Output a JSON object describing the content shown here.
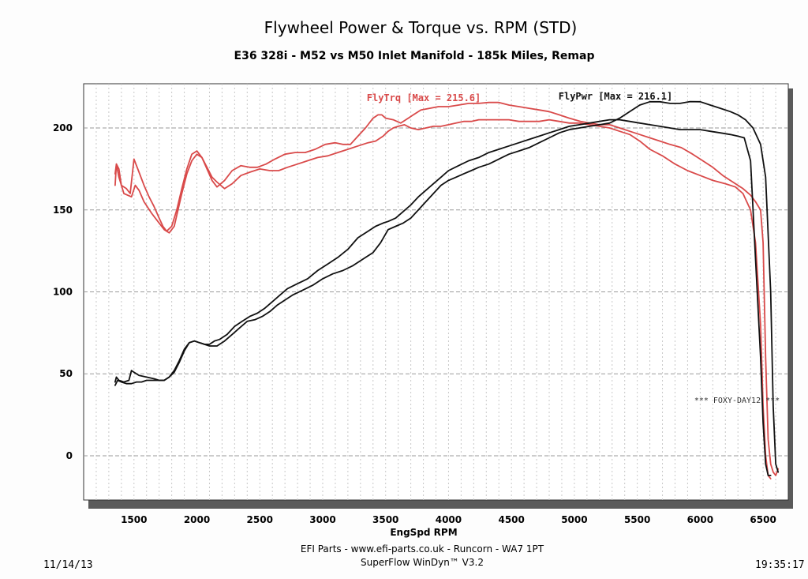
{
  "chart_data": {
    "type": "line",
    "title": "Flywheel Power & Torque vs. RPM (STD)",
    "subtitle": "E36 328i - M52 vs M50 Inlet Manifold - 185k Miles, Remap",
    "xlabel": "EngSpd RPM",
    "ylabel": "",
    "xlim": [
      1100,
      6700
    ],
    "ylim": [
      -27,
      227
    ],
    "x_ticks": [
      1500,
      2000,
      2500,
      3000,
      3500,
      4000,
      4500,
      5000,
      5500,
      6000,
      6500
    ],
    "y_ticks": [
      0,
      50,
      100,
      150,
      200
    ],
    "grid": true,
    "legend": [
      {
        "label": "FlyTrq [Max = 215.6]",
        "color": "#d94a4a"
      },
      {
        "label": "FlyPwr [Max = 216.1]",
        "color": "#111111"
      }
    ],
    "annotation": "*** FOXY-DAY12 ***",
    "series": [
      {
        "name": "FlyTrq run A",
        "color": "#d94a4a",
        "x": [
          1350,
          1360,
          1380,
          1420,
          1480,
          1510,
          1540,
          1580,
          1640,
          1700,
          1740,
          1780,
          1820,
          1850,
          1880,
          1920,
          1960,
          2000,
          2040,
          2080,
          2120,
          2160,
          2220,
          2280,
          2350,
          2420,
          2480,
          2550,
          2620,
          2700,
          2780,
          2860,
          2940,
          3020,
          3100,
          3160,
          3220,
          3280,
          3340,
          3400,
          3440,
          3470,
          3500,
          3560,
          3620,
          3680,
          3720,
          3780,
          3850,
          3920,
          4000,
          4080,
          4160,
          4240,
          4320,
          4400,
          4480,
          4560,
          4640,
          4720,
          4800,
          4880,
          4960,
          5050,
          5120,
          5200,
          5280,
          5360,
          5440,
          5520,
          5600,
          5680,
          5760,
          5850,
          5940,
          6020,
          6100,
          6180,
          6260,
          6340,
          6400,
          6440,
          6480,
          6500,
          6520,
          6540,
          6560,
          6580,
          6600,
          6620
        ],
        "y": [
          165,
          178,
          170,
          160,
          158,
          165,
          162,
          155,
          148,
          142,
          138,
          136,
          140,
          150,
          160,
          172,
          180,
          184,
          182,
          175,
          168,
          164,
          168,
          174,
          177,
          176,
          176,
          178,
          181,
          184,
          185,
          185,
          187,
          190,
          191,
          190,
          190,
          195,
          200,
          206,
          208,
          208,
          206,
          205,
          203,
          206,
          208,
          211,
          212,
          213,
          213,
          214,
          215,
          215,
          215.6,
          215.6,
          214,
          213,
          212,
          211,
          210,
          208,
          206,
          204,
          203,
          202,
          202,
          200,
          198,
          196,
          194,
          192,
          190,
          188,
          184,
          180,
          176,
          171,
          167,
          163,
          159,
          155,
          150,
          130,
          60,
          10,
          -5,
          -10,
          -12,
          -8
        ]
      },
      {
        "name": "FlyTrq run B",
        "color": "#d94a4a",
        "x": [
          1350,
          1360,
          1380,
          1400,
          1440,
          1470,
          1480,
          1500,
          1540,
          1580,
          1620,
          1660,
          1700,
          1730,
          1760,
          1800,
          1840,
          1880,
          1920,
          1960,
          2000,
          2040,
          2080,
          2120,
          2160,
          2220,
          2280,
          2350,
          2420,
          2500,
          2580,
          2650,
          2720,
          2800,
          2880,
          2960,
          3040,
          3120,
          3200,
          3280,
          3360,
          3420,
          3480,
          3520,
          3560,
          3600,
          3650,
          3700,
          3760,
          3820,
          3880,
          3940,
          4000,
          4060,
          4120,
          4180,
          4240,
          4320,
          4400,
          4480,
          4560,
          4640,
          4720,
          4800,
          4880,
          4960,
          5040,
          5120,
          5200,
          5280,
          5360,
          5440,
          5520,
          5600,
          5700,
          5800,
          5900,
          6000,
          6100,
          6200,
          6280,
          6340,
          6400,
          6440,
          6480,
          6500,
          6520,
          6540,
          6560
        ],
        "y": [
          172,
          178,
          175,
          165,
          163,
          160,
          167,
          181,
          173,
          165,
          158,
          152,
          145,
          140,
          137,
          140,
          150,
          163,
          175,
          184,
          186,
          182,
          176,
          170,
          167,
          163,
          166,
          171,
          173,
          175,
          174,
          174,
          176,
          178,
          180,
          182,
          183,
          185,
          187,
          189,
          191,
          192,
          195,
          198,
          200,
          201,
          202,
          200,
          199,
          200,
          201,
          201,
          202,
          203,
          204,
          204,
          205,
          205,
          205,
          205,
          204,
          204,
          204,
          205,
          204,
          203,
          203,
          202,
          201,
          200,
          198,
          196,
          192,
          187,
          183,
          178,
          174,
          171,
          168,
          166,
          164,
          160,
          150,
          130,
          80,
          30,
          0,
          -12,
          -14
        ]
      },
      {
        "name": "FlyPwr run A",
        "color": "#111111",
        "x": [
          1350,
          1360,
          1380,
          1420,
          1460,
          1480,
          1500,
          1540,
          1600,
          1660,
          1700,
          1740,
          1780,
          1820,
          1860,
          1900,
          1940,
          1980,
          2020,
          2060,
          2100,
          2140,
          2180,
          2240,
          2300,
          2360,
          2420,
          2480,
          2540,
          2600,
          2660,
          2720,
          2800,
          2880,
          2960,
          3040,
          3120,
          3200,
          3280,
          3360,
          3420,
          3480,
          3520,
          3580,
          3640,
          3700,
          3760,
          3820,
          3880,
          3940,
          4000,
          4080,
          4160,
          4240,
          4320,
          4400,
          4480,
          4560,
          4640,
          4720,
          4800,
          4880,
          4960,
          5040,
          5120,
          5200,
          5280,
          5360,
          5440,
          5520,
          5600,
          5680,
          5760,
          5840,
          5920,
          6000,
          6080,
          6160,
          6240,
          6300,
          6350,
          6400,
          6440,
          6480,
          6500,
          6520,
          6540,
          6560
        ],
        "y": [
          45,
          48,
          46,
          45,
          46,
          52,
          51,
          49,
          48,
          47,
          46,
          46,
          48,
          51,
          57,
          64,
          69,
          70,
          69,
          68,
          68,
          70,
          71,
          74,
          79,
          82,
          85,
          87,
          90,
          94,
          98,
          102,
          105,
          108,
          113,
          117,
          121,
          126,
          133,
          137,
          140,
          142,
          143,
          145,
          149,
          153,
          158,
          162,
          166,
          170,
          174,
          177,
          180,
          182,
          185,
          187,
          189,
          191,
          193,
          195,
          197,
          199,
          201,
          202,
          203,
          204,
          205,
          205,
          204,
          203,
          202,
          201,
          200,
          199,
          199,
          199,
          198,
          197,
          196,
          195,
          194,
          180,
          120,
          60,
          20,
          -5,
          -12,
          -12
        ]
      },
      {
        "name": "FlyPwr run B",
        "color": "#111111",
        "x": [
          1350,
          1370,
          1400,
          1440,
          1480,
          1520,
          1560,
          1600,
          1660,
          1700,
          1740,
          1780,
          1820,
          1860,
          1900,
          1940,
          1980,
          2020,
          2060,
          2100,
          2160,
          2220,
          2280,
          2340,
          2400,
          2460,
          2520,
          2580,
          2640,
          2700,
          2760,
          2840,
          2920,
          3000,
          3080,
          3160,
          3240,
          3320,
          3400,
          3460,
          3520,
          3580,
          3640,
          3700,
          3760,
          3820,
          3880,
          3940,
          4000,
          4060,
          4120,
          4180,
          4240,
          4320,
          4400,
          4480,
          4560,
          4640,
          4720,
          4800,
          4880,
          4960,
          5040,
          5120,
          5200,
          5280,
          5360,
          5440,
          5520,
          5600,
          5680,
          5760,
          5840,
          5920,
          6000,
          6080,
          6160,
          6240,
          6300,
          6360,
          6420,
          6480,
          6520,
          6560,
          6580,
          6600,
          6620
        ],
        "y": [
          43,
          46,
          45,
          44,
          44,
          45,
          45,
          46,
          46,
          46,
          46,
          48,
          52,
          58,
          65,
          69,
          70,
          69,
          68,
          67,
          67,
          70,
          74,
          78,
          82,
          83,
          85,
          88,
          92,
          95,
          98,
          101,
          104,
          108,
          111,
          113,
          116,
          120,
          124,
          130,
          138,
          140,
          142,
          145,
          150,
          155,
          160,
          165,
          168,
          170,
          172,
          174,
          176,
          178,
          181,
          184,
          186,
          188,
          191,
          194,
          197,
          199,
          200,
          201,
          202,
          203,
          206,
          210,
          214,
          216,
          216,
          215,
          215,
          216.1,
          216,
          214,
          212,
          210,
          208,
          205,
          200,
          190,
          170,
          100,
          30,
          -5,
          -10
        ]
      }
    ]
  },
  "footer": {
    "line1": "EFI Parts - www.efi-parts.co.uk - Runcorn - WA7 1PT",
    "line2": "SuperFlow WinDyn™ V3.2",
    "date": "11/14/13",
    "time": "19:35:17"
  }
}
